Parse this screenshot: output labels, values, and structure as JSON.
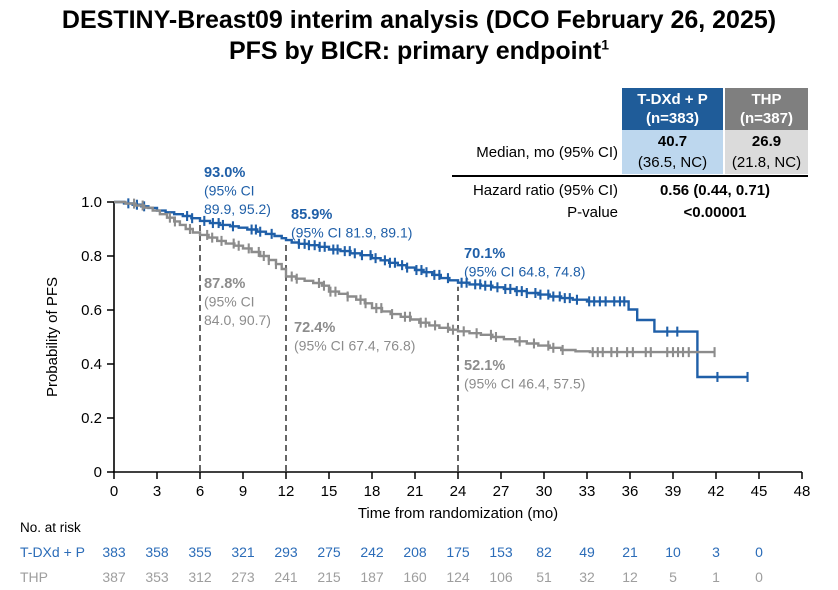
{
  "title": {
    "line1": "DESTINY-Breast09 interim analysis (DCO February 26, 2025)",
    "line2": "PFS by BICR: primary endpoint",
    "footnote_marker": "1"
  },
  "colors": {
    "tdxd_blue": "#1F5FA8",
    "thp_gray": "#8C8C8C",
    "risk_blue_text": "#2B6CB8",
    "risk_gray_text": "#9E9E9E",
    "header_blue": "#1F5C99",
    "header_gray": "#7F7F7F",
    "cell_blue": "#BDD7EE",
    "cell_gray": "#DBDBDB",
    "dashed_line": "#555555",
    "axis": "#000000"
  },
  "stats_table": {
    "col1_header": {
      "line1": "T-DXd + P",
      "line2": "(n=383)"
    },
    "col2_header": {
      "line1": "THP",
      "line2": "(n=387)"
    },
    "median": {
      "label": "Median, mo (95% CI)",
      "col1_value": "40.7",
      "col1_ci": "(36.5, NC)",
      "col2_value": "26.9",
      "col2_ci": "(21.8, NC)"
    },
    "hazard_ratio": {
      "label": "Hazard ratio (95% CI)",
      "value": "0.56 (0.44, 0.71)"
    },
    "p_value": {
      "label": "P-value",
      "value": "<0.00001"
    }
  },
  "chart_data": {
    "type": "line",
    "subtype": "kaplan-meier-step",
    "xlabel": "Time from randomization (mo)",
    "ylabel": "Probability of PFS",
    "xlim": [
      0,
      48
    ],
    "ylim": [
      0,
      1.0
    ],
    "xticks": [
      0,
      3,
      6,
      9,
      12,
      15,
      18,
      21,
      24,
      27,
      30,
      33,
      36,
      39,
      42,
      45,
      48
    ],
    "ytick_labels": [
      "0",
      "0.2",
      "0.4",
      "0.6",
      "0.8",
      "1.0"
    ],
    "ytick_values": [
      0,
      0.2,
      0.4,
      0.6,
      0.8,
      1.0
    ],
    "grid": false,
    "series": [
      {
        "name": "T-DXd + P",
        "color_key": "tdxd_blue",
        "points": [
          [
            0,
            1.0
          ],
          [
            0.7,
            0.995
          ],
          [
            1.3,
            0.99
          ],
          [
            1.9,
            0.984
          ],
          [
            2.4,
            0.978
          ],
          [
            3.0,
            0.968
          ],
          [
            3.6,
            0.962
          ],
          [
            4.2,
            0.955
          ],
          [
            4.8,
            0.948
          ],
          [
            5.4,
            0.94
          ],
          [
            6.0,
            0.93
          ],
          [
            6.7,
            0.922
          ],
          [
            7.4,
            0.915
          ],
          [
            8.1,
            0.91
          ],
          [
            8.7,
            0.905
          ],
          [
            9.3,
            0.898
          ],
          [
            10.0,
            0.89
          ],
          [
            10.6,
            0.882
          ],
          [
            11.2,
            0.874
          ],
          [
            11.7,
            0.866
          ],
          [
            12.0,
            0.859
          ],
          [
            12.4,
            0.85
          ],
          [
            12.9,
            0.845
          ],
          [
            13.6,
            0.84
          ],
          [
            14.3,
            0.834
          ],
          [
            15.0,
            0.824
          ],
          [
            15.8,
            0.818
          ],
          [
            16.5,
            0.81
          ],
          [
            17.2,
            0.803
          ],
          [
            18.0,
            0.792
          ],
          [
            18.6,
            0.784
          ],
          [
            19.2,
            0.775
          ],
          [
            19.8,
            0.766
          ],
          [
            20.4,
            0.757
          ],
          [
            21.0,
            0.748
          ],
          [
            21.6,
            0.74
          ],
          [
            22.2,
            0.73
          ],
          [
            22.8,
            0.718
          ],
          [
            23.4,
            0.71
          ],
          [
            24.0,
            0.701
          ],
          [
            24.8,
            0.695
          ],
          [
            25.6,
            0.69
          ],
          [
            26.4,
            0.684
          ],
          [
            27.2,
            0.678
          ],
          [
            28.0,
            0.67
          ],
          [
            28.8,
            0.663
          ],
          [
            29.6,
            0.657
          ],
          [
            30.4,
            0.65
          ],
          [
            31.2,
            0.644
          ],
          [
            32.0,
            0.638
          ],
          [
            33.0,
            0.632
          ],
          [
            35.9,
            0.602
          ],
          [
            36.5,
            0.563
          ],
          [
            37.7,
            0.52
          ],
          [
            40.7,
            0.352
          ],
          [
            44.2,
            0.352
          ]
        ],
        "censor_marks": [
          1.0,
          1.6,
          2.1,
          5.1,
          5.45,
          6.3,
          6.9,
          7.3,
          7.6,
          8.3,
          9.6,
          9.9,
          10.2,
          11.0,
          12.9,
          13.3,
          13.6,
          14.0,
          14.35,
          14.7,
          15.3,
          15.6,
          16.1,
          16.45,
          16.8,
          17.3,
          17.9,
          18.25,
          18.9,
          19.25,
          19.6,
          20.1,
          20.45,
          21.1,
          21.45,
          21.8,
          22.35,
          22.7,
          23.3,
          24.25,
          24.6,
          25.2,
          25.55,
          25.9,
          26.3,
          26.75,
          27.3,
          27.65,
          28.1,
          28.45,
          28.8,
          29.4,
          29.75,
          30.3,
          30.65,
          31.1,
          31.45,
          31.8,
          32.3,
          33.15,
          33.5,
          33.9,
          34.3,
          34.9,
          35.3,
          35.6,
          38.6,
          39.3,
          42.1,
          44.2
        ]
      },
      {
        "name": "THP",
        "color_key": "thp_gray",
        "points": [
          [
            0,
            1.0
          ],
          [
            0.8,
            0.994
          ],
          [
            1.5,
            0.987
          ],
          [
            2.1,
            0.979
          ],
          [
            2.7,
            0.968
          ],
          [
            3.2,
            0.955
          ],
          [
            3.7,
            0.942
          ],
          [
            4.2,
            0.928
          ],
          [
            4.6,
            0.915
          ],
          [
            5.0,
            0.9
          ],
          [
            5.5,
            0.887
          ],
          [
            6.0,
            0.878
          ],
          [
            6.6,
            0.868
          ],
          [
            7.2,
            0.856
          ],
          [
            7.8,
            0.846
          ],
          [
            8.4,
            0.838
          ],
          [
            9.0,
            0.828
          ],
          [
            9.6,
            0.815
          ],
          [
            10.2,
            0.8
          ],
          [
            10.8,
            0.785
          ],
          [
            11.3,
            0.77
          ],
          [
            11.7,
            0.752
          ],
          [
            12.0,
            0.724
          ],
          [
            12.7,
            0.716
          ],
          [
            13.3,
            0.708
          ],
          [
            13.9,
            0.7
          ],
          [
            14.5,
            0.69
          ],
          [
            15.0,
            0.668
          ],
          [
            15.7,
            0.66
          ],
          [
            16.3,
            0.65
          ],
          [
            16.9,
            0.638
          ],
          [
            17.5,
            0.625
          ],
          [
            18.0,
            0.607
          ],
          [
            18.7,
            0.595
          ],
          [
            19.3,
            0.585
          ],
          [
            20.0,
            0.575
          ],
          [
            20.7,
            0.565
          ],
          [
            21.3,
            0.553
          ],
          [
            22.0,
            0.543
          ],
          [
            22.7,
            0.534
          ],
          [
            23.4,
            0.527
          ],
          [
            24.0,
            0.521
          ],
          [
            24.8,
            0.514
          ],
          [
            25.6,
            0.508
          ],
          [
            26.4,
            0.5
          ],
          [
            27.2,
            0.492
          ],
          [
            28.0,
            0.484
          ],
          [
            28.8,
            0.476
          ],
          [
            29.6,
            0.468
          ],
          [
            30.4,
            0.46
          ],
          [
            31.2,
            0.452
          ],
          [
            32.2,
            0.447
          ],
          [
            33.2,
            0.444
          ],
          [
            41.9,
            0.444
          ]
        ],
        "censor_marks": [
          1.4,
          2.0,
          3.9,
          4.25,
          5.3,
          6.5,
          6.85,
          7.5,
          8.35,
          8.7,
          9.4,
          10.1,
          10.45,
          10.8,
          11.3,
          12.4,
          12.75,
          14.3,
          14.65,
          15.1,
          15.45,
          16.3,
          17.2,
          17.55,
          18.3,
          18.65,
          19.4,
          20.3,
          20.65,
          21.4,
          21.75,
          22.4,
          23.3,
          23.65,
          24.4,
          25.3,
          26.3,
          26.65,
          28.3,
          29.3,
          30.3,
          30.65,
          31.3,
          33.4,
          33.75,
          34.1,
          34.7,
          35.1,
          35.8,
          36.2,
          37.1,
          37.45,
          38.6,
          39.0,
          39.35,
          39.7,
          40.1,
          41.9
        ]
      }
    ],
    "landmarks": [
      {
        "mo": 6,
        "tdxd": {
          "pct": "93.0%",
          "ci_lines": [
            "(95% CI",
            "89.9, 95.2)"
          ]
        },
        "thp": {
          "pct": "87.8%",
          "ci_lines": [
            "(95% CI",
            "84.0, 90.7)"
          ]
        }
      },
      {
        "mo": 12,
        "tdxd": {
          "pct": "85.9%",
          "ci_lines": [
            "(95% CI 81.9, 89.1)"
          ]
        },
        "thp": {
          "pct": "72.4%",
          "ci_lines": [
            "(95% CI 67.4, 76.8)"
          ]
        }
      },
      {
        "mo": 24,
        "tdxd": {
          "pct": "70.1%",
          "ci_lines": [
            "(95% CI 64.8, 74.8)"
          ]
        },
        "thp": {
          "pct": "52.1%",
          "ci_lines": [
            "(95% CI 46.4, 57.5)"
          ]
        }
      }
    ]
  },
  "at_risk": {
    "title": "No. at risk",
    "time_points": [
      0,
      3,
      6,
      9,
      12,
      15,
      18,
      21,
      24,
      27,
      30,
      33,
      36,
      39,
      42,
      45
    ],
    "rows": [
      {
        "label": "T-DXd + P",
        "color_key": "risk_blue_text",
        "values": [
          "383",
          "358",
          "355",
          "321",
          "293",
          "275",
          "242",
          "208",
          "175",
          "153",
          "82",
          "49",
          "21",
          "10",
          "3",
          "0"
        ]
      },
      {
        "label": "THP",
        "color_key": "risk_gray_text",
        "values": [
          "387",
          "353",
          "312",
          "273",
          "241",
          "215",
          "187",
          "160",
          "124",
          "106",
          "51",
          "32",
          "12",
          "5",
          "1",
          "0"
        ]
      }
    ]
  }
}
